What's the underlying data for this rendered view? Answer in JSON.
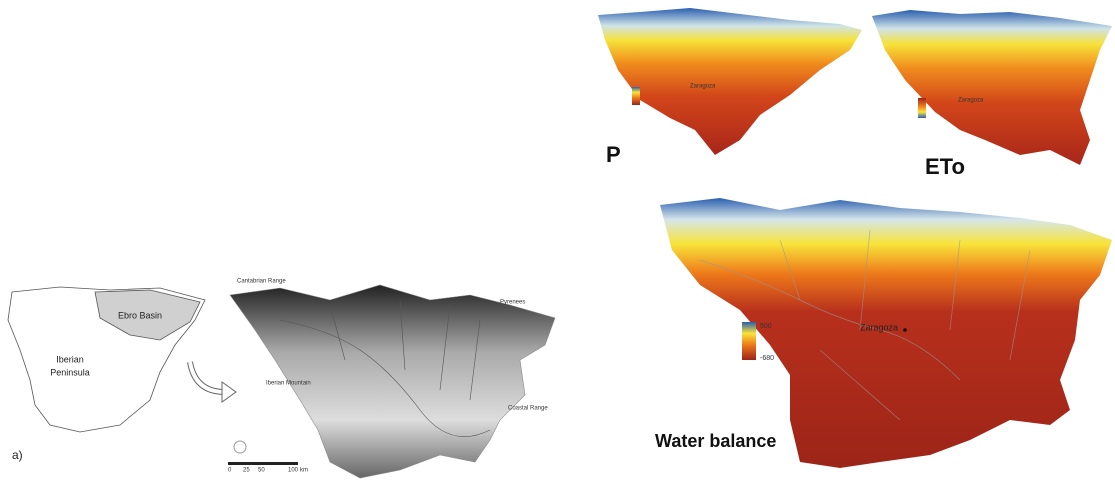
{
  "panel_label": "a)",
  "inset": {
    "region": "Ebro Basin",
    "peninsula": [
      "Iberian",
      "Peninsula"
    ]
  },
  "relief_map": {
    "labels": [
      "Cantabrian Range",
      "Pyrenees",
      "Iberian Mountain",
      "Coastal Range"
    ],
    "scale": [
      "0",
      "25",
      "50",
      "100",
      "km"
    ]
  },
  "maps": [
    {
      "title": "P",
      "city": "Zaragoza"
    },
    {
      "title": "ETo",
      "city": "Zaragoza"
    },
    {
      "title": "Water balance",
      "city": "Zaragoza",
      "legend": [
        "500",
        "-680"
      ]
    }
  ]
}
